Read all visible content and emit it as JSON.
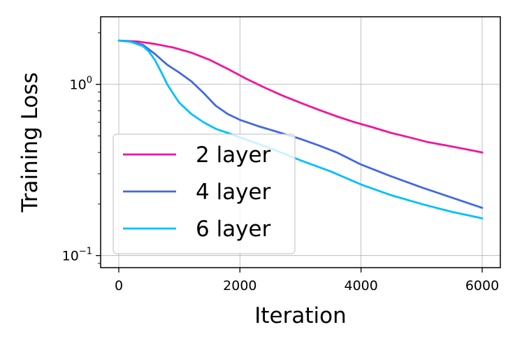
{
  "chart_data": {
    "type": "line",
    "xlabel": "Iteration",
    "ylabel": "Training Loss",
    "xlim": [
      -300,
      6300
    ],
    "ylim": [
      0.085,
      2.48
    ],
    "yscale": "log",
    "grid": true,
    "legend_position": "lower-left",
    "x_ticks": [
      {
        "value": 0,
        "label": "0"
      },
      {
        "value": 2000,
        "label": "2000"
      },
      {
        "value": 4000,
        "label": "4000"
      },
      {
        "value": 6000,
        "label": "6000"
      }
    ],
    "y_ticks": [
      {
        "value": 0.1,
        "base": "10",
        "exp": "−1"
      },
      {
        "value": 1.0,
        "base": "10",
        "exp": "0"
      }
    ],
    "series": [
      {
        "name": "2 layer",
        "color": "#f0179a",
        "x": [
          0,
          300,
          600,
          900,
          1200,
          1500,
          1800,
          2100,
          2400,
          2700,
          3000,
          3300,
          3600,
          3900,
          4200,
          4500,
          4800,
          5100,
          5400,
          5700,
          6000
        ],
        "y": [
          1.8,
          1.78,
          1.72,
          1.64,
          1.53,
          1.39,
          1.23,
          1.08,
          0.96,
          0.86,
          0.78,
          0.71,
          0.65,
          0.6,
          0.56,
          0.52,
          0.49,
          0.46,
          0.44,
          0.42,
          0.4
        ]
      },
      {
        "name": "4 layer",
        "color": "#4169e1",
        "x": [
          0,
          200,
          400,
          600,
          800,
          1000,
          1200,
          1400,
          1600,
          1800,
          2000,
          2300,
          2600,
          3000,
          3300,
          3600,
          4000,
          4500,
          5000,
          5500,
          6000
        ],
        "y": [
          1.8,
          1.78,
          1.7,
          1.5,
          1.3,
          1.17,
          1.04,
          0.89,
          0.75,
          0.67,
          0.62,
          0.57,
          0.53,
          0.48,
          0.44,
          0.4,
          0.34,
          0.29,
          0.25,
          0.218,
          0.19
        ]
      },
      {
        "name": "6 layer",
        "color": "#00bfff",
        "x": [
          0,
          200,
          400,
          500,
          600,
          700,
          800,
          900,
          1000,
          1200,
          1400,
          1600,
          1800,
          2000,
          2300,
          2600,
          3000,
          3500,
          4000,
          4500,
          5000,
          5500,
          6000
        ],
        "y": [
          1.8,
          1.77,
          1.67,
          1.55,
          1.38,
          1.18,
          1.0,
          0.88,
          0.78,
          0.67,
          0.6,
          0.55,
          0.52,
          0.49,
          0.45,
          0.41,
          0.36,
          0.31,
          0.26,
          0.225,
          0.2,
          0.18,
          0.165
        ]
      }
    ]
  }
}
